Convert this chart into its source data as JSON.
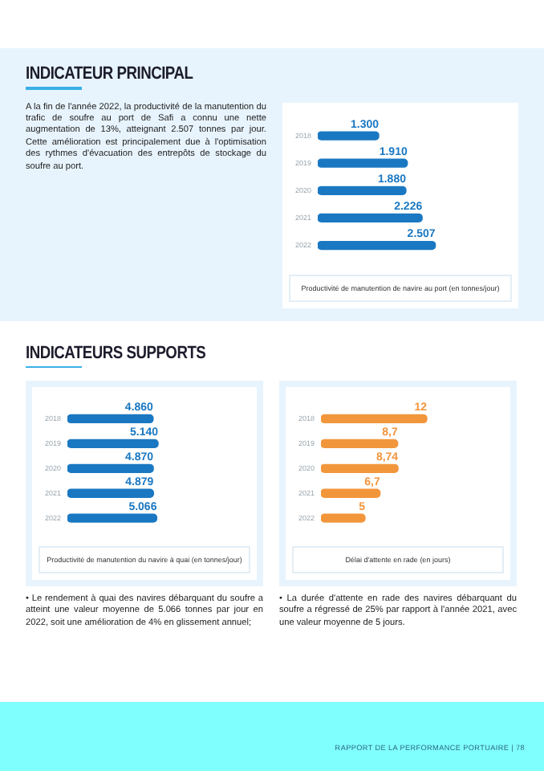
{
  "chart_data": [
    {
      "type": "bar",
      "orientation": "horizontal",
      "title": "INDICATEUR PRINCIPAL",
      "categories": [
        "2018",
        "2019",
        "2020",
        "2021",
        "2022"
      ],
      "values": [
        1300,
        1910,
        1880,
        2226,
        2507
      ],
      "value_labels": [
        "1.300",
        "1.910",
        "1.880",
        "2.226",
        "2.507"
      ],
      "color": "#1a78c2",
      "tick_labels": "y",
      "xlabel": "Productivité de manutention de navire au port (en tonnes/jour)",
      "annotations": [
        "A la fin de l'année 2022, la productivité de la manutention du trafic de soufre au port de Safi a connu une nette augmentation de 13%, atteignant 2.507 tonnes par jour. Cette amélioration est principalement due à l'optimisation des rythmes d'évacuation des entrepôts de stockage du soufre au port."
      ]
    },
    {
      "type": "bar",
      "orientation": "horizontal",
      "title": "INDICATEURS SUPPORTS",
      "categories": [
        "2018",
        "2019",
        "2020",
        "2021",
        "2022"
      ],
      "values": [
        4860,
        5140,
        4870,
        4879,
        5066
      ],
      "value_labels": [
        "4.860",
        "5.140",
        "4.870",
        "4.879",
        "5.066"
      ],
      "color": "#1a78c2",
      "tick_labels": "y",
      "xlabel": "Productivité de manutention du navire à quai (en tonnes/jour)",
      "annotations": [
        "• Le rendement à quai des navires débarquant du soufre a atteint une valeur moyenne de 5.066 tonnes par jour en 2022, soit une amélioration de 4% en glissement annuel;"
      ]
    },
    {
      "type": "bar",
      "orientation": "horizontal",
      "categories": [
        "2018",
        "2019",
        "2020",
        "2021",
        "2022"
      ],
      "values": [
        12,
        8.7,
        8.74,
        6.7,
        5
      ],
      "value_labels": [
        "12",
        "8,7",
        "8,74",
        "6,7",
        "5"
      ],
      "color": "#f2963c",
      "tick_labels": "y",
      "xlabel": "Délai d'attente en rade (en jours)",
      "annotations": [
        "• La durée d'attente en rade des navires débarquant du soufre a régressé de 25% par rapport à l'année 2021, avec une valeur moyenne de 5 jours.",
        "RAPPORT DE LA PERFORMANCE PORTUAIRE | 78"
      ]
    }
  ]
}
